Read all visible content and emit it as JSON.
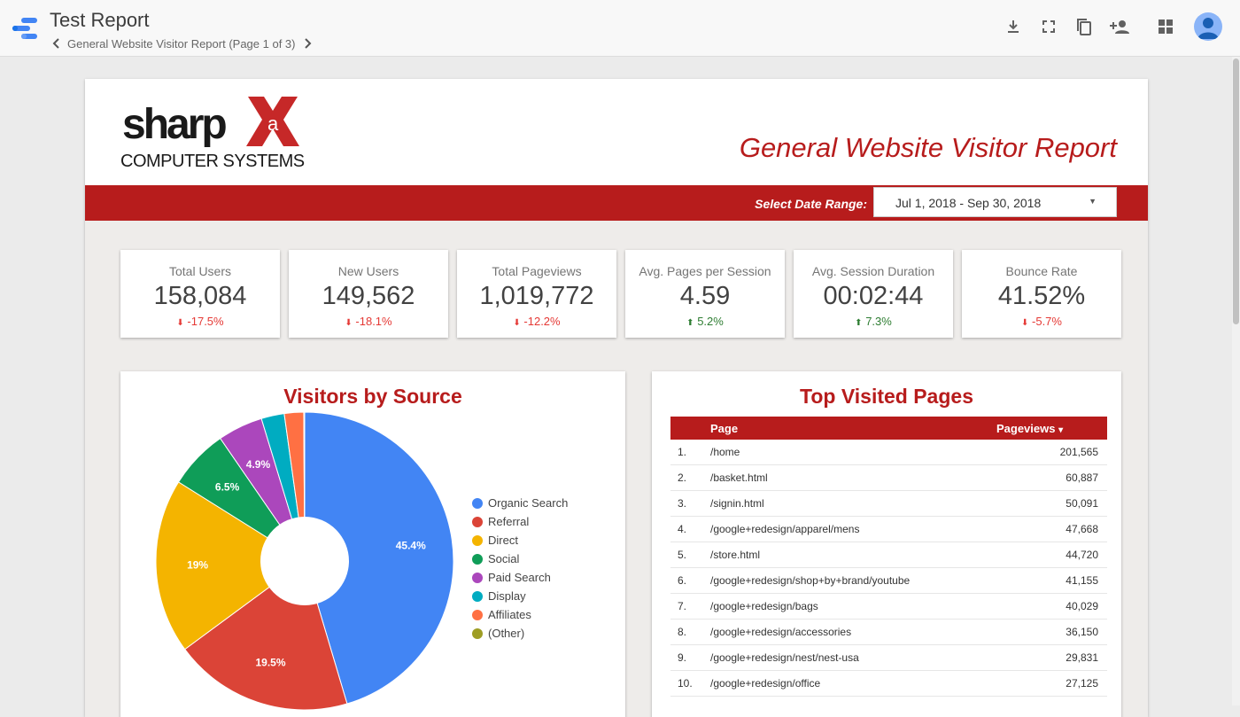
{
  "app": {
    "title": "Test Report",
    "page_label": "General Website Visitor Report (Page 1 of 3)"
  },
  "report": {
    "logo_word": "sharp",
    "logo_mark_letter": "a",
    "logo_sub": "COMPUTER SYSTEMS",
    "title": "General Website Visitor Report",
    "date_label": "Select Date Range:",
    "date_value": "Jul 1, 2018 - Sep 30, 2018"
  },
  "kpis": [
    {
      "label": "Total Users",
      "value": "158,084",
      "delta": "-17.5%",
      "arrow": "⬇",
      "trend": "down"
    },
    {
      "label": "New Users",
      "value": "149,562",
      "delta": "-18.1%",
      "arrow": "⬇",
      "trend": "down"
    },
    {
      "label": "Total Pageviews",
      "value": "1,019,772",
      "delta": "-12.2%",
      "arrow": "⬇",
      "trend": "down"
    },
    {
      "label": "Avg. Pages per Session",
      "value": "4.59",
      "delta": "5.2%",
      "arrow": "⬆",
      "trend": "up"
    },
    {
      "label": "Avg. Session Duration",
      "value": "00:02:44",
      "delta": "7.3%",
      "arrow": "⬆",
      "trend": "up"
    },
    {
      "label": "Bounce Rate",
      "value": "41.52%",
      "delta": "-5.7%",
      "arrow": "⬇",
      "trend": "down"
    }
  ],
  "source_panel": {
    "title": "Visitors by Source",
    "legend": [
      {
        "label": "Organic Search",
        "color": "#4285f4"
      },
      {
        "label": "Referral",
        "color": "#db4437"
      },
      {
        "label": "Direct",
        "color": "#f4b400"
      },
      {
        "label": "Social",
        "color": "#0f9d58"
      },
      {
        "label": "Paid Search",
        "color": "#ab47bc"
      },
      {
        "label": "Display",
        "color": "#00acc1"
      },
      {
        "label": "Affiliates",
        "color": "#ff7043"
      },
      {
        "label": "(Other)",
        "color": "#9e9d24"
      }
    ]
  },
  "chart_data": {
    "type": "pie",
    "title": "Visitors by Source",
    "categories": [
      "Organic Search",
      "Referral",
      "Direct",
      "Social",
      "Paid Search",
      "Display",
      "Affiliates",
      "(Other)"
    ],
    "values": [
      45.4,
      19.5,
      19,
      6.5,
      4.9,
      2.5,
      2.1,
      0.1
    ],
    "value_labels": [
      "45.4%",
      "19.5%",
      "19%",
      "6.5%",
      "4.9%",
      "",
      "",
      ""
    ],
    "colors": [
      "#4285f4",
      "#db4437",
      "#f4b400",
      "#0f9d58",
      "#ab47bc",
      "#00acc1",
      "#ff7043",
      "#9e9d24"
    ],
    "donut": true,
    "legend": "right"
  },
  "pages_panel": {
    "title": "Top Visited Pages",
    "col_page": "Page",
    "col_views": "Pageviews",
    "sort_icon": "▾",
    "rows": [
      {
        "idx": "1.",
        "page": "/home",
        "views": "201,565"
      },
      {
        "idx": "2.",
        "page": "/basket.html",
        "views": "60,887"
      },
      {
        "idx": "3.",
        "page": "/signin.html",
        "views": "50,091"
      },
      {
        "idx": "4.",
        "page": "/google+redesign/apparel/mens",
        "views": "47,668"
      },
      {
        "idx": "5.",
        "page": "/store.html",
        "views": "44,720"
      },
      {
        "idx": "6.",
        "page": "/google+redesign/shop+by+brand/youtube",
        "views": "41,155"
      },
      {
        "idx": "7.",
        "page": "/google+redesign/bags",
        "views": "40,029"
      },
      {
        "idx": "8.",
        "page": "/google+redesign/accessories",
        "views": "36,150"
      },
      {
        "idx": "9.",
        "page": "/google+redesign/nest/nest-usa",
        "views": "29,831"
      },
      {
        "idx": "10.",
        "page": "/google+redesign/office",
        "views": "27,125"
      }
    ]
  }
}
